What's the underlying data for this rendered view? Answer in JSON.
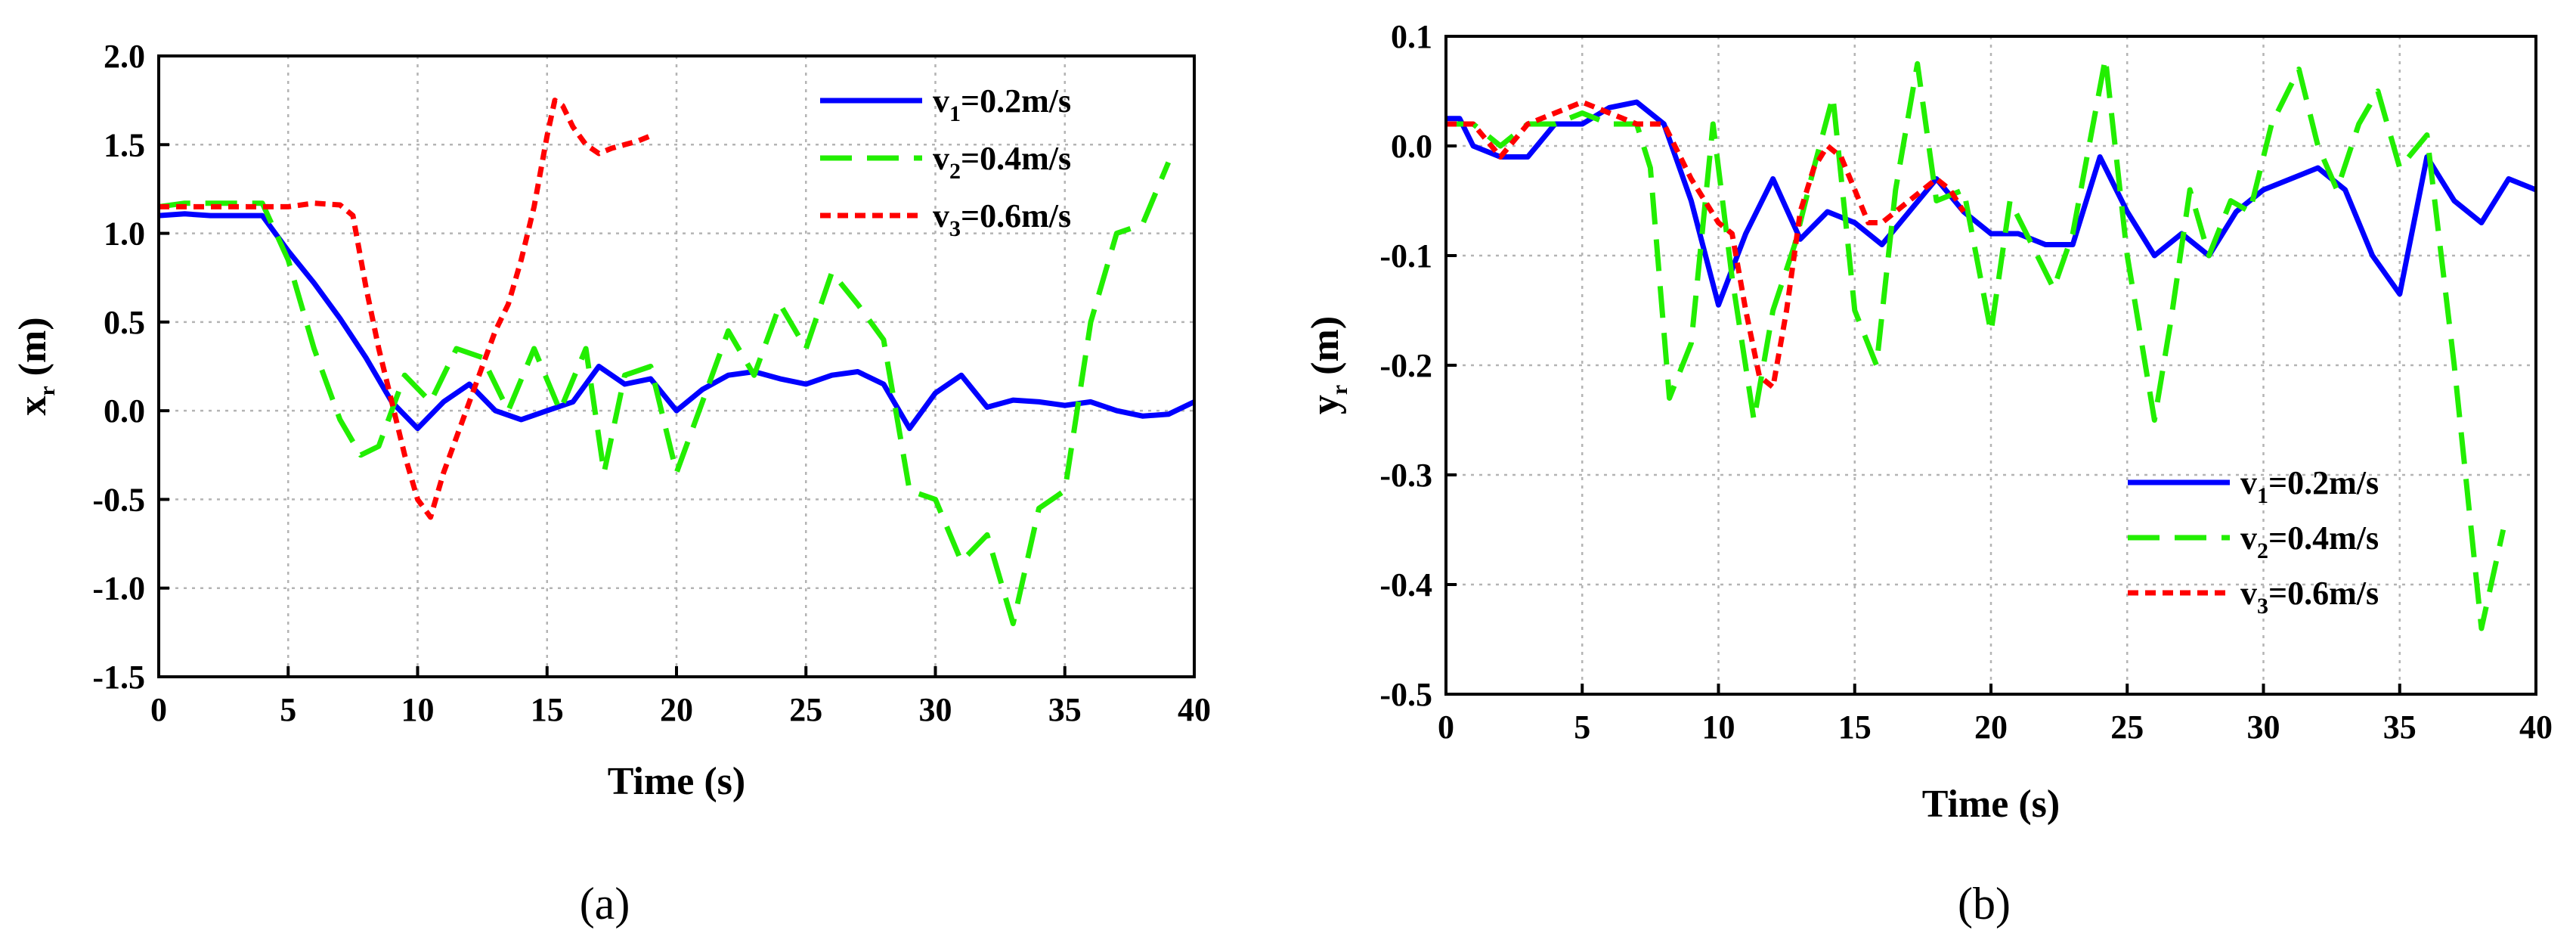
{
  "chart_data": [
    {
      "type": "line",
      "panel_label": "(a)",
      "ylabel": {
        "main": "x",
        "sub": "r",
        "unit": " (m)"
      },
      "xlabel": "Time (s)",
      "xlim": [
        0,
        40
      ],
      "ylim": [
        -1.5,
        2.0
      ],
      "xticks": [
        "0",
        "5",
        "10",
        "15",
        "20",
        "25",
        "30",
        "35",
        "40"
      ],
      "yticks": [
        "-1.5",
        "-1.0",
        "-0.5",
        "0.0",
        "0.5",
        "1.0",
        "1.5",
        "2.0"
      ],
      "grid": true,
      "legend_position": "top-right",
      "series": [
        {
          "name": "v1=0.2m/s",
          "label_main": "v",
          "label_sub": "1",
          "label_rest": "=0.2m/s",
          "color": "#0000ff",
          "style": "solid",
          "x": [
            0,
            1,
            2,
            3,
            4,
            5,
            6,
            7,
            8,
            9,
            10,
            11,
            12,
            13,
            14,
            15,
            16,
            17,
            18,
            19,
            20,
            21,
            22,
            23,
            24,
            25,
            26,
            27,
            28,
            29,
            30,
            31,
            32,
            33,
            34,
            35,
            36,
            37,
            38,
            39,
            40
          ],
          "y": [
            1.1,
            1.11,
            1.1,
            1.1,
            1.1,
            0.9,
            0.72,
            0.52,
            0.3,
            0.05,
            -0.1,
            0.05,
            0.15,
            0.0,
            -0.05,
            0.0,
            0.05,
            0.25,
            0.15,
            0.18,
            0.0,
            0.12,
            0.2,
            0.22,
            0.18,
            0.15,
            0.2,
            0.22,
            0.15,
            -0.1,
            0.1,
            0.2,
            0.02,
            0.06,
            0.05,
            0.03,
            0.05,
            0.0,
            -0.03,
            -0.02,
            0.05
          ]
        },
        {
          "name": "v2=0.4m/s",
          "label_main": "v",
          "label_sub": "2",
          "label_rest": "=0.4m/s",
          "color": "#22ee00",
          "style": "dash",
          "x": [
            0,
            1,
            2,
            3,
            4,
            5,
            6,
            7,
            7.8,
            8.5,
            9.5,
            10.5,
            11.5,
            12.5,
            13.5,
            14.5,
            15.5,
            16.5,
            17.2,
            18,
            19,
            20,
            21,
            22,
            23,
            24,
            25,
            26,
            27,
            28,
            29,
            30,
            31,
            32,
            33,
            34,
            35,
            36,
            37,
            38,
            39
          ],
          "y": [
            1.15,
            1.17,
            1.17,
            1.17,
            1.17,
            0.85,
            0.35,
            -0.05,
            -0.25,
            -0.2,
            0.2,
            0.05,
            0.35,
            0.3,
            0.0,
            0.35,
            0.0,
            0.35,
            -0.35,
            0.2,
            0.25,
            -0.35,
            0.05,
            0.45,
            0.2,
            0.6,
            0.35,
            0.78,
            0.6,
            0.4,
            -0.45,
            -0.5,
            -0.85,
            -0.7,
            -1.2,
            -0.55,
            -0.45,
            0.5,
            1.0,
            1.05,
            1.4
          ]
        },
        {
          "name": "v3=0.6m/s",
          "label_main": "v",
          "label_sub": "3",
          "label_rest": "=0.6m/s",
          "color": "#ff0000",
          "style": "dot",
          "x": [
            0,
            1,
            2,
            3,
            4,
            5,
            6,
            7,
            7.5,
            8,
            8.5,
            9,
            9.5,
            10,
            10.5,
            11,
            11.5,
            12,
            12.5,
            13,
            13.5,
            14,
            14.5,
            15,
            15.3,
            15.6,
            16,
            16.5,
            17,
            17.5,
            18,
            18.5,
            19
          ],
          "y": [
            1.15,
            1.15,
            1.15,
            1.15,
            1.15,
            1.15,
            1.17,
            1.16,
            1.1,
            0.7,
            0.35,
            0.05,
            -0.25,
            -0.5,
            -0.6,
            -0.35,
            -0.15,
            0.05,
            0.25,
            0.45,
            0.6,
            0.85,
            1.15,
            1.55,
            1.75,
            1.72,
            1.6,
            1.5,
            1.45,
            1.48,
            1.5,
            1.52,
            1.55
          ]
        }
      ]
    },
    {
      "type": "line",
      "panel_label": "(b)",
      "ylabel": {
        "main": "y",
        "sub": "r",
        "unit": " (m)"
      },
      "xlabel": "Time (s)",
      "xlim": [
        0,
        40
      ],
      "ylim": [
        -0.5,
        0.1
      ],
      "xticks": [
        "0",
        "5",
        "10",
        "15",
        "20",
        "25",
        "30",
        "35",
        "40"
      ],
      "yticks": [
        "-0.5",
        "-0.4",
        "-0.3",
        "-0.2",
        "-0.1",
        "0.0",
        "0.1"
      ],
      "grid": true,
      "legend_position": "bottom-right",
      "series": [
        {
          "name": "v1=0.2m/s",
          "label_main": "v",
          "label_sub": "1",
          "label_rest": "=0.2m/s",
          "color": "#0000ff",
          "style": "solid",
          "x": [
            0,
            0.5,
            1,
            2,
            3,
            4,
            5,
            6,
            7,
            8,
            9,
            10,
            11,
            12,
            13,
            14,
            15,
            16,
            17,
            18,
            19,
            20,
            21,
            22,
            23,
            24,
            25,
            26,
            27,
            28,
            29,
            30,
            31,
            32,
            33,
            34,
            35,
            36,
            37,
            38,
            39,
            40
          ],
          "y": [
            0.025,
            0.025,
            0.0,
            -0.01,
            -0.01,
            0.02,
            0.02,
            0.035,
            0.04,
            0.02,
            -0.05,
            -0.145,
            -0.08,
            -0.03,
            -0.085,
            -0.06,
            -0.07,
            -0.09,
            -0.06,
            -0.03,
            -0.06,
            -0.08,
            -0.08,
            -0.09,
            -0.09,
            -0.01,
            -0.06,
            -0.1,
            -0.08,
            -0.1,
            -0.06,
            -0.04,
            -0.03,
            -0.02,
            -0.04,
            -0.1,
            -0.135,
            -0.01,
            -0.05,
            -0.07,
            -0.03,
            -0.04
          ]
        },
        {
          "name": "v2=0.4m/s",
          "label_main": "v",
          "label_sub": "2",
          "label_rest": "=0.4m/s",
          "color": "#22ee00",
          "style": "dash",
          "x": [
            0,
            1,
            2,
            3,
            4,
            5,
            6,
            7,
            7.5,
            8.2,
            9,
            9.8,
            10.5,
            11.3,
            12,
            12.8,
            13.5,
            14.2,
            15,
            15.8,
            16.5,
            17.3,
            18,
            19,
            20,
            20.7,
            21.5,
            22.3,
            23,
            24.2,
            25,
            26,
            26.6,
            27.3,
            28,
            28.8,
            29.5,
            30.3,
            31.3,
            32,
            32.7,
            33.5,
            34.2,
            35,
            36,
            37,
            38,
            38.8
          ],
          "y": [
            0.02,
            0.02,
            0.0,
            0.02,
            0.02,
            0.03,
            0.02,
            0.02,
            -0.02,
            -0.23,
            -0.18,
            0.02,
            -0.12,
            -0.25,
            -0.15,
            -0.09,
            -0.02,
            0.045,
            -0.15,
            -0.2,
            -0.04,
            0.075,
            -0.05,
            -0.04,
            -0.17,
            -0.05,
            -0.09,
            -0.13,
            -0.08,
            0.08,
            -0.1,
            -0.25,
            -0.16,
            -0.04,
            -0.1,
            -0.05,
            -0.06,
            0.02,
            0.07,
            0.0,
            -0.04,
            0.02,
            0.05,
            -0.02,
            0.01,
            -0.2,
            -0.44,
            -0.35
          ]
        },
        {
          "name": "v3=0.6m/s",
          "label_main": "v",
          "label_sub": "3",
          "label_rest": "=0.6m/s",
          "color": "#ff0000",
          "style": "dot",
          "x": [
            0,
            1,
            2,
            3,
            4,
            5,
            6,
            7,
            8,
            9,
            10,
            10.5,
            11,
            11.5,
            12,
            12.5,
            13,
            13.5,
            14,
            14.5,
            15,
            15.5,
            16,
            16.5,
            17,
            17.5,
            18,
            18.5,
            19
          ],
          "y": [
            0.02,
            0.02,
            -0.01,
            0.02,
            0.03,
            0.04,
            0.03,
            0.02,
            0.02,
            -0.03,
            -0.07,
            -0.08,
            -0.15,
            -0.21,
            -0.22,
            -0.15,
            -0.06,
            -0.02,
            0.0,
            -0.01,
            -0.04,
            -0.07,
            -0.07,
            -0.06,
            -0.05,
            -0.04,
            -0.03,
            -0.04,
            -0.06
          ]
        }
      ]
    }
  ]
}
